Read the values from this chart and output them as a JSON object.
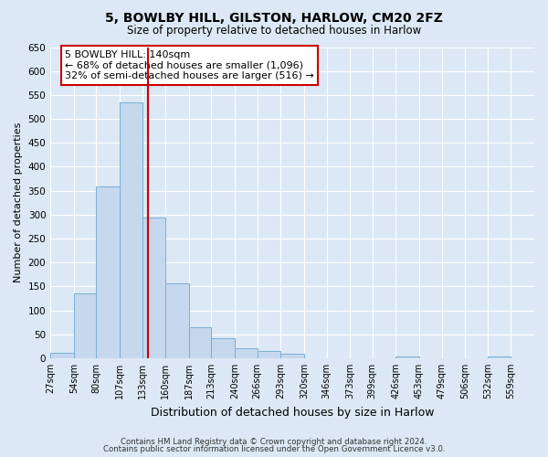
{
  "title": "5, BOWLBY HILL, GILSTON, HARLOW, CM20 2FZ",
  "subtitle": "Size of property relative to detached houses in Harlow",
  "xlabel": "Distribution of detached houses by size in Harlow",
  "ylabel": "Number of detached properties",
  "bar_color": "#c5d8ed",
  "bar_edge_color": "#7aafd4",
  "background_color": "#dce8f5",
  "grid_color": "#ffffff",
  "bin_labels": [
    "27sqm",
    "54sqm",
    "80sqm",
    "107sqm",
    "133sqm",
    "160sqm",
    "187sqm",
    "213sqm",
    "240sqm",
    "266sqm",
    "293sqm",
    "320sqm",
    "346sqm",
    "373sqm",
    "399sqm",
    "426sqm",
    "453sqm",
    "479sqm",
    "506sqm",
    "532sqm",
    "559sqm"
  ],
  "bar_heights": [
    11,
    136,
    358,
    534,
    293,
    157,
    65,
    41,
    21,
    15,
    9,
    0,
    0,
    0,
    0,
    4,
    0,
    0,
    0,
    4,
    0
  ],
  "bin_edges": [
    27,
    54,
    80,
    107,
    133,
    160,
    187,
    213,
    240,
    266,
    293,
    320,
    346,
    373,
    399,
    426,
    453,
    479,
    506,
    532,
    559,
    586
  ],
  "vline_x": 140,
  "vline_color": "#cc0000",
  "ylim": [
    0,
    650
  ],
  "yticks": [
    0,
    50,
    100,
    150,
    200,
    250,
    300,
    350,
    400,
    450,
    500,
    550,
    600,
    650
  ],
  "annotation_text": "5 BOWLBY HILL: 140sqm\n← 68% of detached houses are smaller (1,096)\n32% of semi-detached houses are larger (516) →",
  "annotation_box_color": "#ffffff",
  "annotation_box_edge": "#cc0000",
  "footer1": "Contains HM Land Registry data © Crown copyright and database right 2024.",
  "footer2": "Contains public sector information licensed under the Open Government Licence v3.0."
}
